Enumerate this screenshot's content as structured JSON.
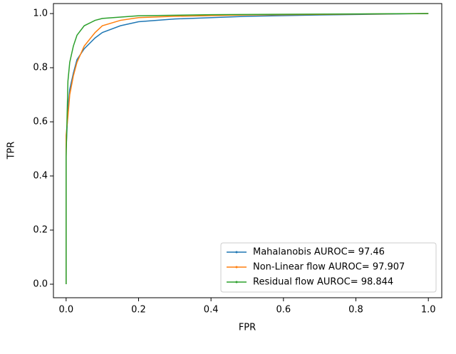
{
  "chart_data": {
    "type": "line",
    "xlabel": "FPR",
    "ylabel": "TPR",
    "xlim": [
      -0.035,
      1.037
    ],
    "ylim": [
      -0.05,
      1.037
    ],
    "xticks": [
      {
        "value": 0,
        "label": "0.0"
      },
      0.2,
      0.4,
      0.6,
      0.8,
      {
        "value": 1,
        "label": "1.0"
      }
    ],
    "yticks": [
      {
        "value": 0,
        "label": "0.0"
      },
      0.2,
      0.4,
      0.6,
      0.8,
      {
        "value": 1,
        "label": "1.0"
      }
    ],
    "legend": "lower right",
    "series": [
      {
        "name": "Mahalanobis AUROC= 97.46",
        "color": "#1f77b4",
        "x": [
          0,
          0,
          0.005,
          0.01,
          0.02,
          0.03,
          0.05,
          0.08,
          0.1,
          0.15,
          0.2,
          0.3,
          0.5,
          0.7,
          1
        ],
        "values": [
          0,
          0.5,
          0.65,
          0.72,
          0.78,
          0.83,
          0.87,
          0.91,
          0.93,
          0.955,
          0.97,
          0.98,
          0.99,
          0.995,
          1
        ]
      },
      {
        "name": "Non-Linear flow AUROC= 97.907",
        "color": "#ff7f0e",
        "x": [
          0,
          0,
          0.005,
          0.01,
          0.02,
          0.03,
          0.05,
          0.08,
          0.1,
          0.15,
          0.2,
          0.3,
          0.5,
          1
        ],
        "values": [
          0,
          0.55,
          0.62,
          0.7,
          0.77,
          0.82,
          0.88,
          0.93,
          0.955,
          0.975,
          0.985,
          0.99,
          0.995,
          1
        ]
      },
      {
        "name": "Residual flow AUROC= 98.844",
        "color": "#2ca02c",
        "x": [
          0,
          0,
          0.005,
          0.01,
          0.02,
          0.03,
          0.05,
          0.08,
          0.1,
          0.2,
          0.4,
          1
        ],
        "values": [
          0,
          0.47,
          0.75,
          0.82,
          0.88,
          0.92,
          0.955,
          0.975,
          0.982,
          0.992,
          0.996,
          1
        ]
      }
    ]
  }
}
